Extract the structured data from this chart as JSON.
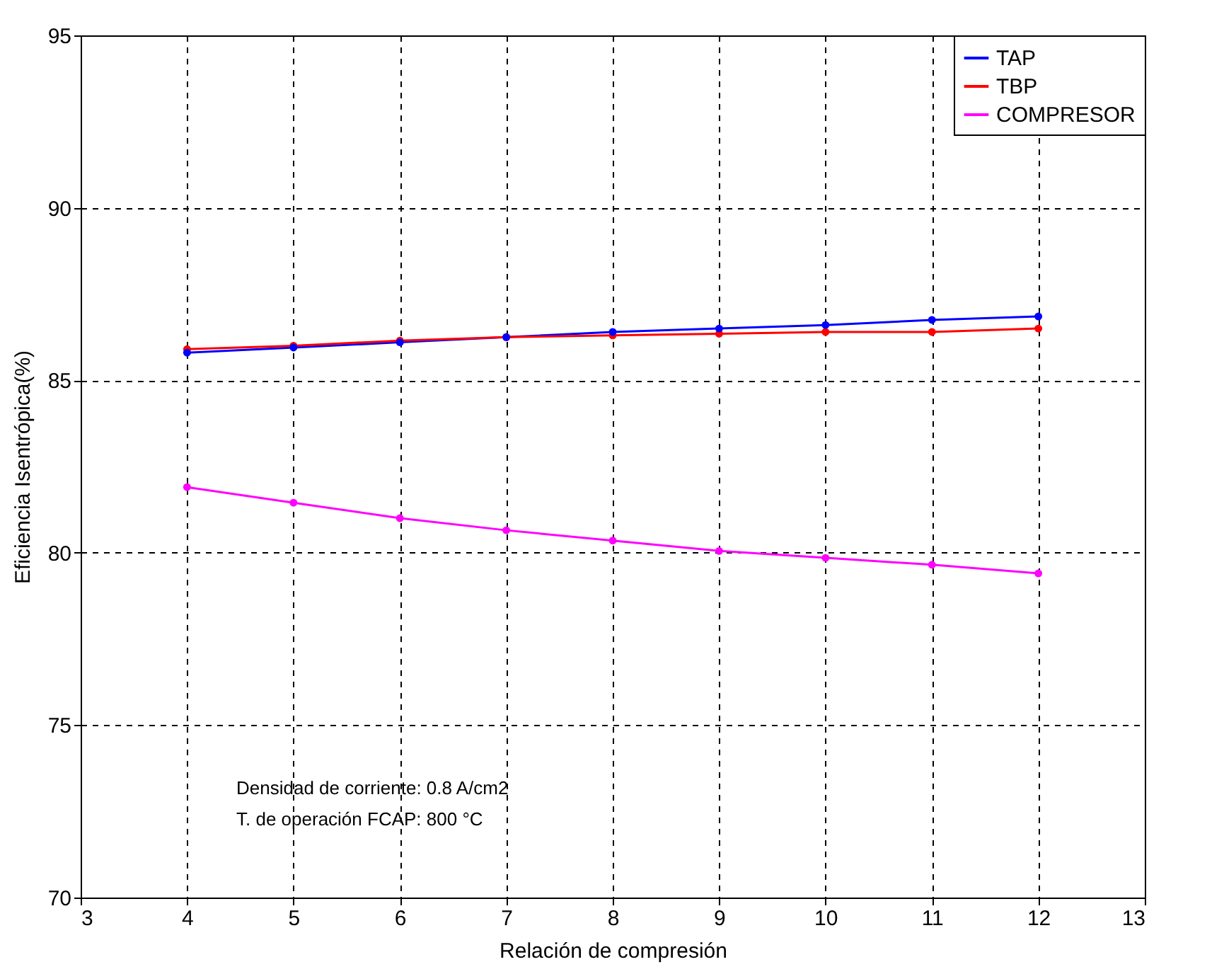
{
  "chart_data": {
    "type": "line",
    "xlabel": "Relación de compresión",
    "ylabel": "Eficiencia Isentrópica(%)",
    "x": [
      4,
      5,
      6,
      7,
      8,
      9,
      10,
      11,
      12
    ],
    "series": [
      {
        "name": "TAP",
        "color": "#0000ff",
        "values": [
          85.8,
          85.95,
          86.1,
          86.25,
          86.4,
          86.5,
          86.6,
          86.75,
          86.85
        ]
      },
      {
        "name": "TBP",
        "color": "#ff0000",
        "values": [
          85.9,
          86.0,
          86.15,
          86.25,
          86.3,
          86.35,
          86.4,
          86.4,
          86.5
        ]
      },
      {
        "name": "COMPRESOR",
        "color": "#ff00ff",
        "values": [
          81.9,
          81.45,
          81.0,
          80.65,
          80.35,
          80.05,
          79.85,
          79.65,
          79.4
        ]
      }
    ],
    "xlim": [
      3,
      13
    ],
    "xticks": [
      3,
      4,
      5,
      6,
      7,
      8,
      9,
      10,
      11,
      12,
      13
    ],
    "ylim": [
      70,
      95
    ],
    "yticks": [
      70,
      75,
      80,
      85,
      90,
      95
    ],
    "grid": true,
    "legend": "top right",
    "marker": "circle",
    "line_style": "solid",
    "annotations": [
      "Densidad de corriente:  0.8 A/cm2",
      "T. de operación FCAP:  800 °C"
    ]
  }
}
